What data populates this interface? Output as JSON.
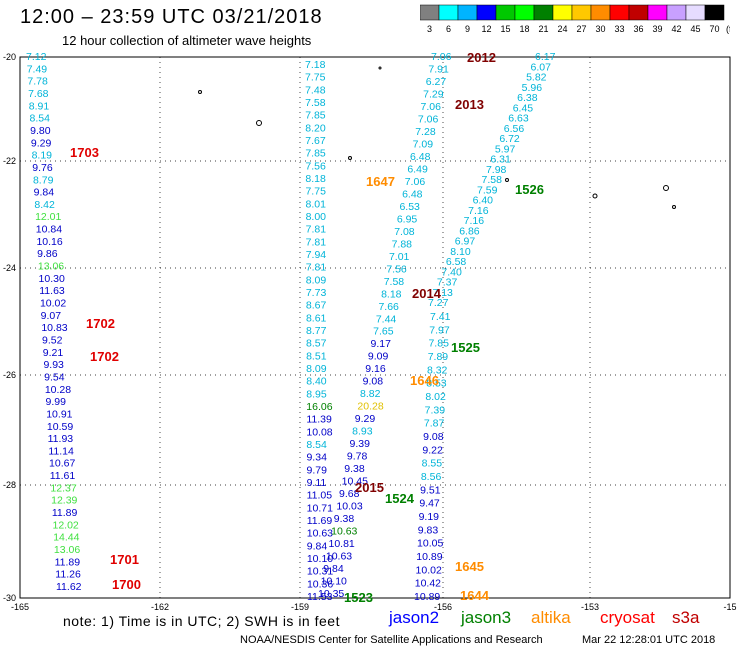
{
  "header": {
    "title": "12:00 – 23:59 UTC 03/21/2018",
    "subtitle": "12 hour collection of altimeter wave heights"
  },
  "color_scale": {
    "unit": "(ft)",
    "labels": [
      "3",
      "6",
      "9",
      "12",
      "15",
      "18",
      "21",
      "24",
      "27",
      "30",
      "33",
      "36",
      "39",
      "42",
      "45",
      "70"
    ],
    "colors": [
      "#808080",
      "#00ffff",
      "#00b4ff",
      "#0000ff",
      "#00c800",
      "#00ff00",
      "#008000",
      "#ffff00",
      "#ffc800",
      "#ff8c00",
      "#ff0000",
      "#c00000",
      "#ff00ff",
      "#c8a0ff",
      "#e6dcff",
      "#000000"
    ]
  },
  "axes": {
    "lat_labels": [
      "-20",
      "-22",
      "-24",
      "-26",
      "-28",
      "-30"
    ],
    "lon_labels": [
      "-165",
      "-162",
      "-159",
      "-156",
      "-153",
      "-15"
    ]
  },
  "footer": {
    "note": "note:  1) Time is in UTC; 2) SWH is in feet",
    "satellites": [
      {
        "name": "jason2",
        "color": "#0000ff"
      },
      {
        "name": "jason3",
        "color": "#008000"
      },
      {
        "name": "altika",
        "color": "#ff8c00"
      },
      {
        "name": "cryosat",
        "color": "#ff0000"
      },
      {
        "name": "s3a",
        "color": "#c00000"
      }
    ],
    "credit": "NOAA/NESDIS Center for Satellite Applications and Research",
    "timestamp": "Mar 22 12:28:01 UTC 2018"
  },
  "palette": {
    "cyan": "#00b4d8",
    "blue": "#0000c8",
    "lgreen": "#40e040",
    "green": "#008000",
    "orange": "#ff8c00",
    "red": "#e00000",
    "dred": "#800000",
    "yellow": "#e0c000"
  },
  "tracks": {
    "left": {
      "lat_start": -20.0,
      "lat_step": 0.2065,
      "values": [
        {
          "v": "7.12",
          "c": "cyan"
        },
        {
          "v": "7.49",
          "c": "cyan"
        },
        {
          "v": "7.78",
          "c": "cyan"
        },
        {
          "v": "7.68",
          "c": "cyan"
        },
        {
          "v": "8.91",
          "c": "cyan"
        },
        {
          "v": "8.54",
          "c": "cyan"
        },
        {
          "v": "9.80",
          "c": "blue"
        },
        {
          "v": "9.29",
          "c": "blue"
        },
        {
          "v": "8.19",
          "c": "cyan"
        },
        {
          "v": "9.76",
          "c": "blue"
        },
        {
          "v": "8.79",
          "c": "cyan"
        },
        {
          "v": "9.84",
          "c": "blue"
        },
        {
          "v": "8.42",
          "c": "cyan"
        },
        {
          "v": "12.01",
          "c": "lgreen"
        },
        {
          "v": "10.84",
          "c": "blue"
        },
        {
          "v": "10.16",
          "c": "blue"
        },
        {
          "v": "9.86",
          "c": "blue"
        },
        {
          "v": "13.06",
          "c": "lgreen"
        },
        {
          "v": "10.30",
          "c": "blue"
        },
        {
          "v": "11.63",
          "c": "blue"
        },
        {
          "v": "10.02",
          "c": "blue"
        },
        {
          "v": "9.07",
          "c": "blue"
        },
        {
          "v": "10.83",
          "c": "blue"
        },
        {
          "v": "9.52",
          "c": "blue"
        },
        {
          "v": "9.21",
          "c": "blue"
        },
        {
          "v": "9.93",
          "c": "blue"
        },
        {
          "v": "9.54",
          "c": "blue"
        },
        {
          "v": "10.28",
          "c": "blue"
        },
        {
          "v": "9.99",
          "c": "blue"
        },
        {
          "v": "10.91",
          "c": "blue"
        },
        {
          "v": "10.59",
          "c": "blue"
        },
        {
          "v": "11.93",
          "c": "blue"
        },
        {
          "v": "11.14",
          "c": "blue"
        },
        {
          "v": "10.67",
          "c": "blue"
        },
        {
          "v": "11.61",
          "c": "blue"
        },
        {
          "v": "12.37",
          "c": "lgreen"
        },
        {
          "v": "12.39",
          "c": "lgreen"
        },
        {
          "v": "11.89",
          "c": "blue"
        },
        {
          "v": "12.02",
          "c": "lgreen"
        },
        {
          "v": "14.44",
          "c": "lgreen"
        },
        {
          "v": "13.06",
          "c": "lgreen"
        },
        {
          "v": "11.89",
          "c": "blue"
        },
        {
          "v": "11.26",
          "c": "blue"
        },
        {
          "v": "11.62",
          "c": "blue"
        }
      ]
    },
    "inner_left": {
      "values": [
        {
          "v": "7.18",
          "c": "cyan"
        },
        {
          "v": "7.75",
          "c": "cyan"
        },
        {
          "v": "7.48",
          "c": "cyan"
        },
        {
          "v": "7.58",
          "c": "cyan"
        },
        {
          "v": "7.85",
          "c": "cyan"
        },
        {
          "v": "8.20",
          "c": "cyan"
        },
        {
          "v": "7.67",
          "c": "cyan"
        },
        {
          "v": "7.85",
          "c": "cyan"
        },
        {
          "v": "7.56",
          "c": "cyan"
        },
        {
          "v": "8.18",
          "c": "cyan"
        },
        {
          "v": "7.75",
          "c": "cyan"
        },
        {
          "v": "8.01",
          "c": "cyan"
        },
        {
          "v": "8.00",
          "c": "cyan"
        },
        {
          "v": "7.81",
          "c": "cyan"
        },
        {
          "v": "7.81",
          "c": "cyan"
        },
        {
          "v": "7.94",
          "c": "cyan"
        },
        {
          "v": "7.81",
          "c": "cyan"
        },
        {
          "v": "8.09",
          "c": "cyan"
        },
        {
          "v": "7.73",
          "c": "cyan"
        },
        {
          "v": "8.67",
          "c": "cyan"
        },
        {
          "v": "8.61",
          "c": "cyan"
        },
        {
          "v": "8.77",
          "c": "cyan"
        },
        {
          "v": "8.57",
          "c": "cyan"
        },
        {
          "v": "8.51",
          "c": "cyan"
        },
        {
          "v": "8.09",
          "c": "cyan"
        },
        {
          "v": "8.40",
          "c": "cyan"
        },
        {
          "v": "8.95",
          "c": "cyan"
        },
        {
          "v": "16.06",
          "c": "green"
        },
        {
          "v": "11.39",
          "c": "blue"
        },
        {
          "v": "10.08",
          "c": "blue"
        },
        {
          "v": "8.54",
          "c": "cyan"
        },
        {
          "v": "9.34",
          "c": "blue"
        },
        {
          "v": "9.79",
          "c": "blue"
        },
        {
          "v": "9.11",
          "c": "blue"
        },
        {
          "v": "11.05",
          "c": "blue"
        },
        {
          "v": "10.71",
          "c": "blue"
        },
        {
          "v": "11.69",
          "c": "blue"
        },
        {
          "v": "10.63",
          "c": "blue"
        },
        {
          "v": "9.84",
          "c": "blue"
        },
        {
          "v": "10.10",
          "c": "blue"
        },
        {
          "v": "10.31",
          "c": "blue"
        },
        {
          "v": "10.36",
          "c": "blue"
        },
        {
          "v": "11.53",
          "c": "blue"
        }
      ]
    },
    "inner_right": {
      "values": [
        {
          "v": "7.06",
          "c": "cyan"
        },
        {
          "v": "7.91",
          "c": "cyan"
        },
        {
          "v": "6.27",
          "c": "cyan"
        },
        {
          "v": "7.29",
          "c": "cyan"
        },
        {
          "v": "7.06",
          "c": "cyan"
        },
        {
          "v": "7.06",
          "c": "cyan"
        },
        {
          "v": "7.28",
          "c": "cyan"
        },
        {
          "v": "7.09",
          "c": "cyan"
        },
        {
          "v": "6.48",
          "c": "cyan"
        },
        {
          "v": "6.49",
          "c": "cyan"
        },
        {
          "v": "7.06",
          "c": "cyan"
        },
        {
          "v": "6.48",
          "c": "cyan"
        },
        {
          "v": "6.53",
          "c": "cyan"
        },
        {
          "v": "6.95",
          "c": "cyan"
        },
        {
          "v": "7.08",
          "c": "cyan"
        },
        {
          "v": "7.88",
          "c": "cyan"
        },
        {
          "v": "7.01",
          "c": "cyan"
        },
        {
          "v": "7.56",
          "c": "cyan"
        },
        {
          "v": "7.58",
          "c": "cyan"
        },
        {
          "v": "8.18",
          "c": "cyan"
        },
        {
          "v": "7.66",
          "c": "cyan"
        },
        {
          "v": "7.44",
          "c": "cyan"
        },
        {
          "v": "7.65",
          "c": "cyan"
        },
        {
          "v": "9.17",
          "c": "blue"
        },
        {
          "v": "9.09",
          "c": "blue"
        },
        {
          "v": "9.16",
          "c": "blue"
        },
        {
          "v": "9.08",
          "c": "blue"
        },
        {
          "v": "8.82",
          "c": "cyan"
        },
        {
          "v": "20.28",
          "c": "yellow"
        },
        {
          "v": "9.29",
          "c": "blue"
        },
        {
          "v": "8.93",
          "c": "cyan"
        },
        {
          "v": "9.39",
          "c": "blue"
        },
        {
          "v": "9.78",
          "c": "blue"
        },
        {
          "v": "9.38",
          "c": "blue"
        },
        {
          "v": "10.45",
          "c": "blue"
        },
        {
          "v": "9.68",
          "c": "blue"
        },
        {
          "v": "10.03",
          "c": "blue"
        },
        {
          "v": "9.38",
          "c": "blue"
        },
        {
          "v": "10.63",
          "c": "green"
        },
        {
          "v": "10.81",
          "c": "blue"
        },
        {
          "v": "10.63",
          "c": "blue"
        },
        {
          "v": "9.84",
          "c": "blue"
        },
        {
          "v": "10.10",
          "c": "blue"
        },
        {
          "v": "10.35",
          "c": "blue"
        }
      ]
    },
    "center_right": {
      "values": [
        {
          "v": "7.41",
          "c": "cyan"
        },
        {
          "v": "7.97",
          "c": "cyan"
        },
        {
          "v": "7.85",
          "c": "cyan"
        },
        {
          "v": "7.89",
          "c": "cyan"
        },
        {
          "v": "8.32",
          "c": "cyan"
        },
        {
          "v": "8.53",
          "c": "cyan"
        },
        {
          "v": "8.02",
          "c": "cyan"
        },
        {
          "v": "7.39",
          "c": "cyan"
        },
        {
          "v": "7.87",
          "c": "cyan"
        },
        {
          "v": "9.08",
          "c": "blue"
        },
        {
          "v": "9.22",
          "c": "blue"
        },
        {
          "v": "8.55",
          "c": "cyan"
        },
        {
          "v": "8.56",
          "c": "cyan"
        },
        {
          "v": "9.51",
          "c": "blue"
        },
        {
          "v": "9.47",
          "c": "blue"
        },
        {
          "v": "9.19",
          "c": "blue"
        },
        {
          "v": "9.83",
          "c": "blue"
        },
        {
          "v": "10.05",
          "c": "blue"
        },
        {
          "v": "10.89",
          "c": "blue"
        },
        {
          "v": "10.02",
          "c": "blue"
        },
        {
          "v": "10.42",
          "c": "blue"
        },
        {
          "v": "10.89",
          "c": "blue"
        }
      ]
    },
    "right": {
      "values": [
        {
          "v": "6.17",
          "c": "cyan"
        },
        {
          "v": "6.07",
          "c": "cyan"
        },
        {
          "v": "5.82",
          "c": "cyan"
        },
        {
          "v": "5.96",
          "c": "cyan"
        },
        {
          "v": "6.38",
          "c": "cyan"
        },
        {
          "v": "6.45",
          "c": "cyan"
        },
        {
          "v": "6.63",
          "c": "cyan"
        },
        {
          "v": "6.56",
          "c": "cyan"
        },
        {
          "v": "6.72",
          "c": "cyan"
        },
        {
          "v": "5.97",
          "c": "cyan"
        },
        {
          "v": "6.31",
          "c": "cyan"
        },
        {
          "v": "7.98",
          "c": "cyan"
        },
        {
          "v": "7.58",
          "c": "cyan"
        },
        {
          "v": "7.59",
          "c": "cyan"
        },
        {
          "v": "6.40",
          "c": "cyan"
        },
        {
          "v": "7.16",
          "c": "cyan"
        },
        {
          "v": "7.16",
          "c": "cyan"
        },
        {
          "v": "6.86",
          "c": "cyan"
        },
        {
          "v": "6.97",
          "c": "cyan"
        },
        {
          "v": "8.10",
          "c": "cyan"
        },
        {
          "v": "6.58",
          "c": "cyan"
        },
        {
          "v": "7.40",
          "c": "cyan"
        },
        {
          "v": "7.37",
          "c": "cyan"
        },
        {
          "v": "7.13",
          "c": "cyan"
        },
        {
          "v": "7.27",
          "c": "cyan"
        }
      ]
    }
  },
  "time_labels": [
    {
      "t": "1703",
      "c": "red"
    },
    {
      "t": "1702",
      "c": "red"
    },
    {
      "t": "1702",
      "c": "red"
    },
    {
      "t": "1701",
      "c": "red"
    },
    {
      "t": "1700",
      "c": "red"
    },
    {
      "t": "2012",
      "c": "dred"
    },
    {
      "t": "2013",
      "c": "dred"
    },
    {
      "t": "2014",
      "c": "dred"
    },
    {
      "t": "2015",
      "c": "dred"
    },
    {
      "t": "1647",
      "c": "orange"
    },
    {
      "t": "1646",
      "c": "orange"
    },
    {
      "t": "1645",
      "c": "orange"
    },
    {
      "t": "1644",
      "c": "orange"
    },
    {
      "t": "1526",
      "c": "green"
    },
    {
      "t": "1525",
      "c": "green"
    },
    {
      "t": "1524",
      "c": "green"
    },
    {
      "t": "1523",
      "c": "green"
    }
  ]
}
